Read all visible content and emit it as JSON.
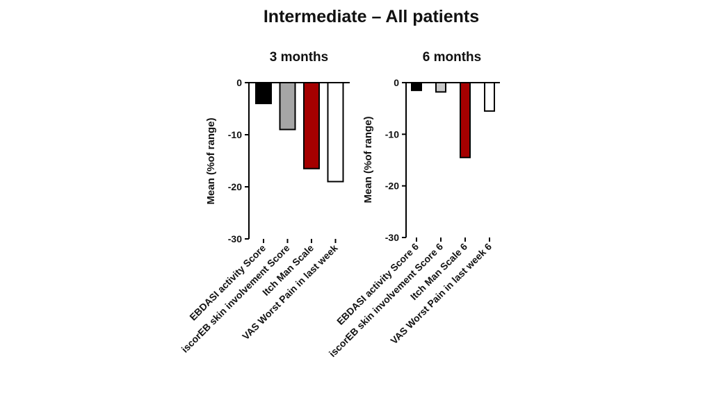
{
  "title": "Intermediate – All patients",
  "chart_data": [
    {
      "type": "bar",
      "title": "3 months",
      "ylabel": "Mean (%of range)",
      "xlabel": "",
      "ylim": [
        -30,
        0
      ],
      "yticks": [
        0,
        -10,
        -20,
        -30
      ],
      "categories": [
        "EBDASI activity Score",
        "iscorEB skin involvement Score",
        "Itch Man Scale",
        "VAS Worst Pain in last week"
      ],
      "values": [
        -4,
        -9,
        -16.5,
        -19
      ],
      "colors": [
        "#000000",
        "#a6a6a6",
        "#a50000",
        "#ffffff"
      ],
      "grid": false
    },
    {
      "type": "bar",
      "title": "6 months",
      "ylabel": "Mean (%of range)",
      "xlabel": "",
      "ylim": [
        -30,
        0
      ],
      "yticks": [
        0,
        -10,
        -20,
        -30
      ],
      "categories": [
        "EBDASI activity Score 6",
        "iscorEB skin involvement Score 6",
        "Itch Man Scale 6",
        "VAS Worst Pain in last week 6"
      ],
      "values": [
        -1.5,
        -1.8,
        -14.5,
        -5.5
      ],
      "colors": [
        "#000000",
        "#c8c8c8",
        "#a50000",
        "#ffffff"
      ],
      "grid": false
    }
  ]
}
